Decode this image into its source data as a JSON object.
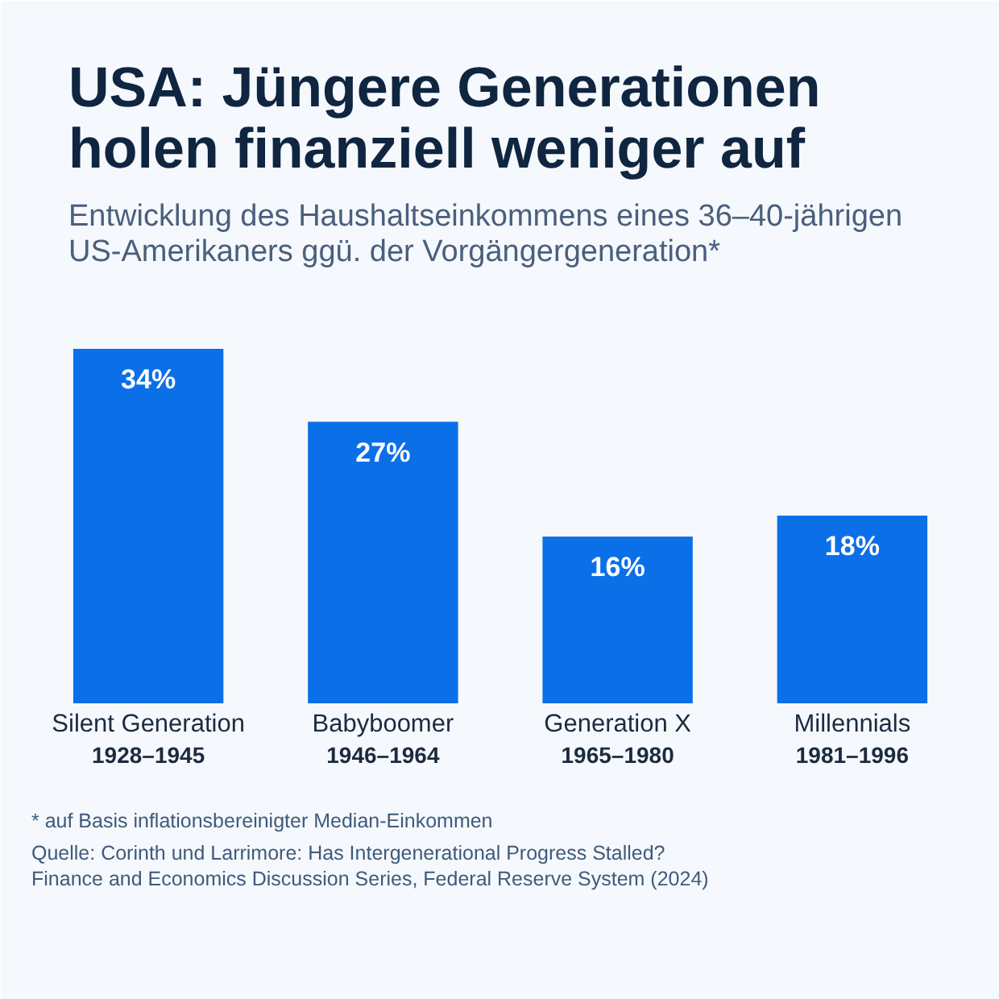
{
  "chart_data": {
    "type": "bar",
    "title": "USA: Jüngere Generationen holen finanziell weniger auf",
    "subtitle": "Entwicklung des Haushaltseinkommens eines 36–40-jährigen US-Amerikaners ggü. der Vorgängergeneration*",
    "categories": [
      "Silent Generation\n1928–1945",
      "Babyboomer\n1946–1964",
      "Generation X\n1965–1980",
      "Millennials\n1981–1996"
    ],
    "values": [
      34,
      27,
      16,
      18
    ],
    "value_labels": [
      "34%",
      "27%",
      "16%",
      "18%"
    ],
    "color": "#0b6fe8",
    "annotations": [
      "* auf Basis inflationsbereinigter Median-Einkommen",
      "Quelle: Corinth und Larrimore: Has Intergenerational Progress Stalled? Finance and Economics Discussion Series, Federal Reserve System (2024)"
    ]
  }
}
